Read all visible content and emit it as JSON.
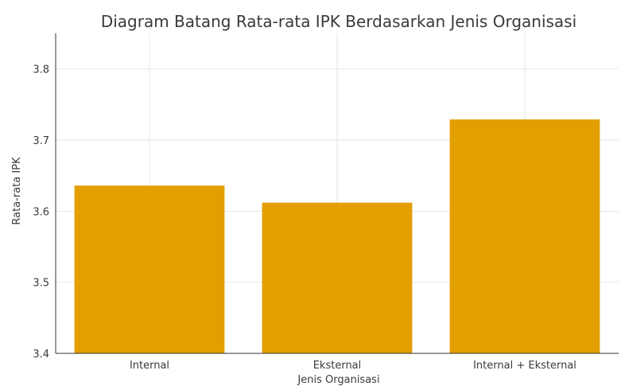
{
  "chart_data": {
    "type": "bar",
    "title": "Diagram Batang Rata-rata IPK Berdasarkan Jenis Organisasi",
    "xlabel": "Jenis Organisasi",
    "ylabel": "Rata-rata IPK",
    "categories": [
      "Internal",
      "Eksternal",
      "Internal + Eksternal"
    ],
    "values": [
      3.636,
      3.612,
      3.729
    ],
    "ylim": [
      3.4,
      3.85
    ],
    "yticks": [
      "3.4",
      "3.5",
      "3.6",
      "3.7",
      "3.8"
    ],
    "bar_color": "#e39e00",
    "grid": true
  }
}
